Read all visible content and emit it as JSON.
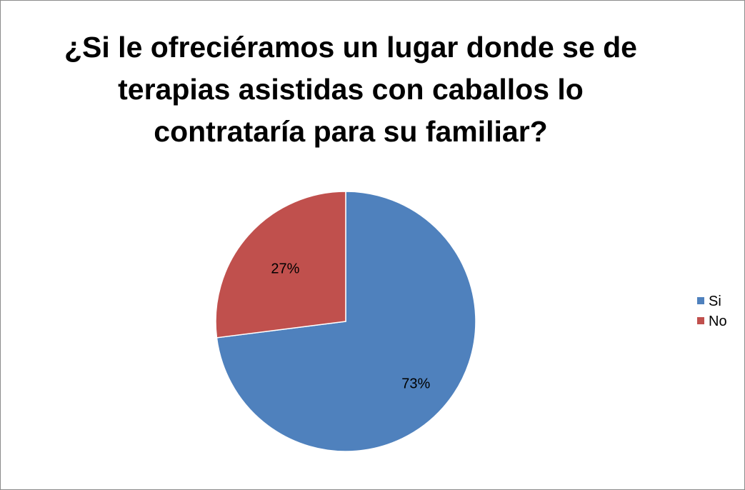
{
  "chart_data": {
    "type": "pie",
    "title": "¿Si le ofreciéramos un lugar donde se de terapias asistidas con caballos lo contrataría para su familiar?",
    "categories": [
      "Si",
      "No"
    ],
    "values": [
      73,
      27
    ],
    "data_labels": [
      "73%",
      "27%"
    ],
    "colors": [
      "#4f81bd",
      "#c0504d"
    ],
    "legend_position": "right",
    "start_angle": "12 o'clock",
    "direction": "clockwise"
  }
}
